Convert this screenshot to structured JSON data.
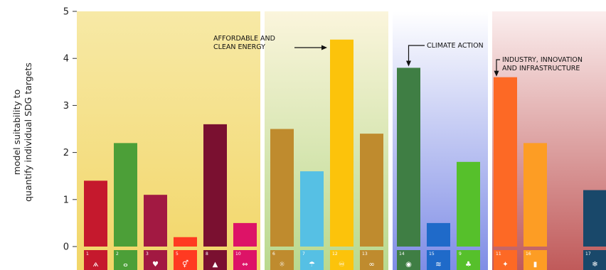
{
  "chart_data": {
    "type": "bar",
    "ylabel_lines": [
      "model suitability to",
      "quantify individual SDG targets"
    ],
    "ylim": [
      0,
      5
    ],
    "yticks": [
      0,
      1,
      2,
      3,
      4,
      5
    ],
    "grid": false,
    "groups": [
      {
        "name": "group-1",
        "top_color": "#f7e9a6",
        "bottom_color": "#f2d668"
      },
      {
        "name": "group-2",
        "top_color": "#fbf5dc",
        "bottom_color": "#b9d98e"
      },
      {
        "name": "group-3",
        "top_color": "#ffffff",
        "bottom_color": "#7f8de6"
      },
      {
        "name": "group-4",
        "top_color": "#fbeeee",
        "bottom_color": "#c05a5a"
      }
    ],
    "categories": [
      "1",
      "2",
      "3",
      "5",
      "8",
      "10",
      "6",
      "7",
      "12",
      "13",
      "14",
      "15",
      "9",
      "11",
      "16",
      "17"
    ],
    "values": [
      1.4,
      2.2,
      1.1,
      0.2,
      2.6,
      0.5,
      2.5,
      1.6,
      4.4,
      2.4,
      3.8,
      0.5,
      1.8,
      3.6,
      2.2,
      1.2
    ],
    "colors": [
      "#c5192d",
      "#4c9f38",
      "#a21942",
      "#ff3a21",
      "#7a1030",
      "#dd1367",
      "#bf8b2e",
      "#56c0e4",
      "#fcc30b",
      "#bf8b2e",
      "#3f7e44",
      "#1f6ac9",
      "#56c02b",
      "#fd6925",
      "#fd9d24",
      "#19486a"
    ],
    "group_of": [
      0,
      0,
      0,
      0,
      0,
      0,
      1,
      1,
      1,
      1,
      2,
      2,
      2,
      3,
      3,
      3
    ],
    "icon_glyphs": [
      "ѧ",
      "ⴰ",
      "♥",
      "⚥",
      "▲",
      "⇔",
      "☼",
      "☂",
      "♾",
      "∞",
      "◉",
      "≋",
      "♣",
      "✦",
      "▮",
      "❄"
    ],
    "annotations": [
      {
        "lines": [
          "AFFORDABLE AND",
          "CLEAN ENERGY"
        ],
        "target": 8
      },
      {
        "lines": [
          "CLIMATE ACTION"
        ],
        "target": 10
      },
      {
        "lines": [
          "INDUSTRY, INNOVATION",
          "AND INFRASTRUCTURE"
        ],
        "target": 13
      }
    ]
  }
}
